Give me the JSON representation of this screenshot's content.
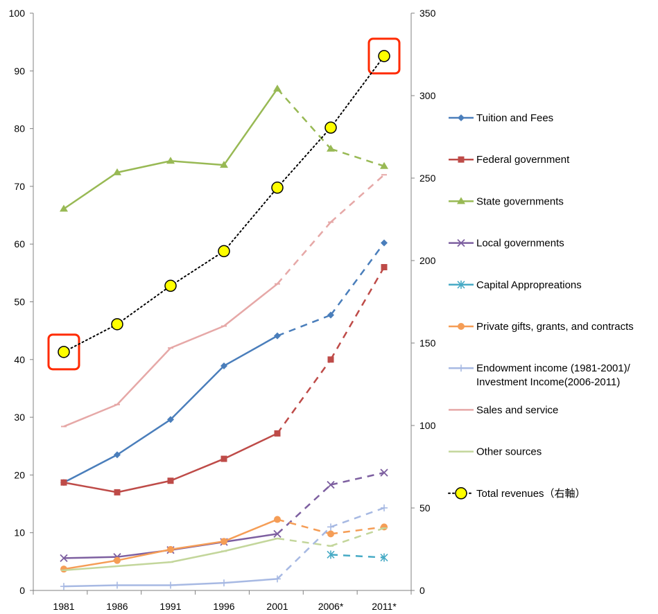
{
  "chart_data": {
    "type": "line",
    "categories": [
      "1981",
      "1986",
      "1991",
      "1996",
      "2001",
      "2006*",
      "2011*"
    ],
    "y_left": {
      "range": [
        0,
        100
      ],
      "ticks": [
        0,
        10,
        20,
        30,
        40,
        50,
        60,
        70,
        80,
        90,
        100
      ]
    },
    "y_right": {
      "range": [
        0,
        350
      ],
      "ticks": [
        0,
        50,
        100,
        150,
        200,
        250,
        300,
        350
      ]
    },
    "grid": false,
    "legend_position": "right",
    "dashed_segment_after": "2001",
    "series": [
      {
        "name": "Tuition and Fees",
        "axis": "left",
        "color": "#4a7ebb",
        "marker": "diamond",
        "values": [
          18.7,
          23.5,
          29.6,
          38.9,
          44.1,
          47.7,
          60.2
        ]
      },
      {
        "name": "Federal government",
        "axis": "left",
        "color": "#be4b48",
        "marker": "square",
        "values": [
          18.7,
          17.0,
          19.0,
          22.8,
          27.2,
          40.0,
          56.0
        ]
      },
      {
        "name": "State governments",
        "axis": "left",
        "color": "#98b954",
        "marker": "triangle",
        "values": [
          66.1,
          72.4,
          74.4,
          73.7,
          86.9,
          76.5,
          73.5
        ]
      },
      {
        "name": "Local governments",
        "axis": "left",
        "color": "#7d5fa0",
        "marker": "x",
        "values": [
          5.6,
          5.8,
          7.0,
          8.4,
          9.8,
          18.3,
          20.4
        ]
      },
      {
        "name": "Capital Appropreations",
        "axis": "left",
        "color": "#46aac5",
        "marker": "star",
        "values": [
          null,
          null,
          null,
          null,
          null,
          6.2,
          5.7
        ]
      },
      {
        "name": "Private gifts, grants, and contracts",
        "axis": "left",
        "color": "#f59d56",
        "marker": "circle",
        "values": [
          3.7,
          5.2,
          7.1,
          8.5,
          12.3,
          9.8,
          11.0
        ]
      },
      {
        "name": "Endowment income (1981-2001)/ Investment Income(2006-2011)",
        "axis": "left",
        "color": "#a7b9e3",
        "marker": "plus",
        "values": [
          0.7,
          0.9,
          0.9,
          1.3,
          2.0,
          11.0,
          14.3
        ]
      },
      {
        "name": "Sales and service",
        "axis": "left",
        "color": "#e6a8a7",
        "marker": "dash",
        "values": [
          28.4,
          32.2,
          42.0,
          45.8,
          53.1,
          63.8,
          72.0
        ]
      },
      {
        "name": "Other sources",
        "axis": "left",
        "color": "#c3d69b",
        "marker": "dash",
        "values": [
          3.5,
          4.2,
          4.9,
          6.8,
          9.0,
          7.7,
          10.8
        ]
      },
      {
        "name": "Total revenues（右軸）",
        "axis": "right",
        "color": "#000000",
        "marker": "big-circle",
        "fill": "#ffff00",
        "line": "dotted",
        "values": [
          144.6,
          161.4,
          184.7,
          205.7,
          244.2,
          280.6,
          324.0
        ]
      }
    ],
    "highlight_boxes": [
      "1981",
      "2011*"
    ]
  }
}
